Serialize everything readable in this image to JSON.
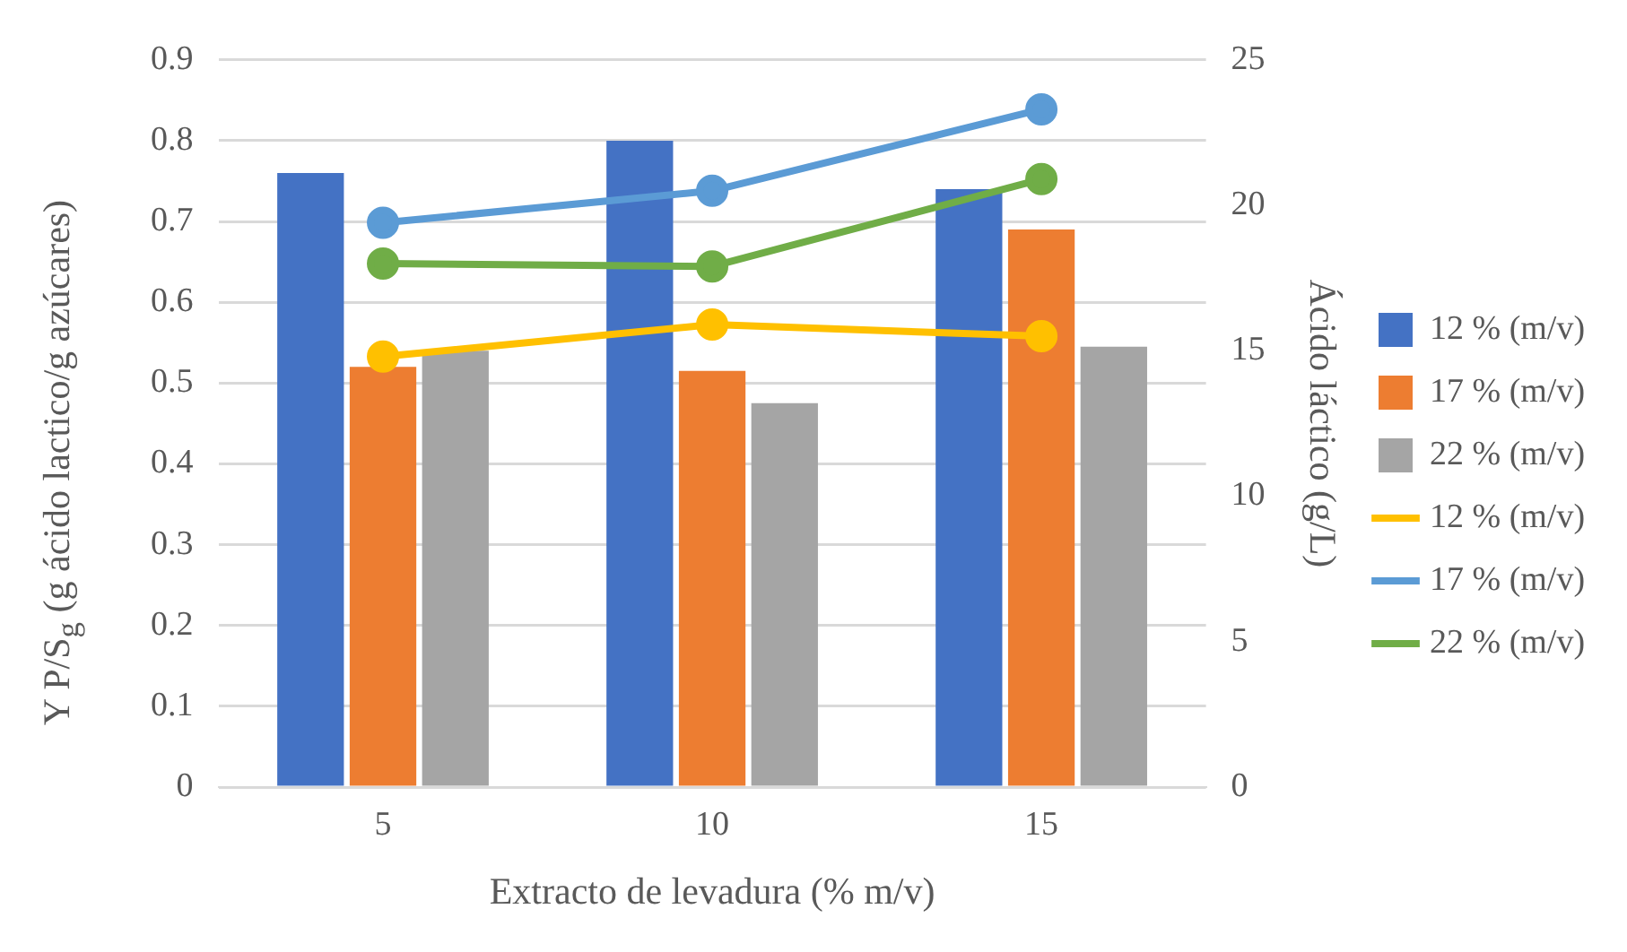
{
  "chart_data": {
    "type": "bar",
    "xlabel": "Extracto de levadura (% m/v)",
    "ylabel": "Y P/S$_{g}$ (g ácido lactico/g azúcares)",
    "y2label": "Ácido láctico (g/L)",
    "categories": [
      "5",
      "10",
      "15"
    ],
    "series": [
      {
        "name": "12 % (m/v)",
        "color": "#4472c4",
        "values": [
          0.76,
          0.8,
          0.74
        ]
      },
      {
        "name": "17 % (m/v)",
        "color": "#ed7d31",
        "values": [
          0.52,
          0.515,
          0.69
        ]
      },
      {
        "name": "22 % (m/v)",
        "color": "#a5a5a5",
        "values": [
          0.54,
          0.475,
          0.545
        ]
      },
      {
        "name": "12 % (m/v)",
        "type": "line",
        "axis": "y2",
        "color": "#ffc000",
        "values": [
          14.8,
          15.9,
          15.5
        ]
      },
      {
        "name": "17 % (m/v)",
        "type": "line",
        "axis": "y2",
        "color": "#5b9bd5",
        "values": [
          19.4,
          20.5,
          23.3
        ]
      },
      {
        "name": "22 % (m/v)",
        "type": "line",
        "axis": "y2",
        "color": "#70ad47",
        "values": [
          18.0,
          17.9,
          20.9
        ]
      }
    ],
    "ylim": [
      0,
      0.9
    ],
    "yticks": [
      0,
      0.1,
      0.2,
      0.3,
      0.4,
      0.5,
      0.6,
      0.7,
      0.8,
      0.9
    ],
    "y2lim": [
      0,
      25
    ],
    "y2ticks": [
      0,
      5,
      10,
      15,
      20,
      25
    ],
    "grid": "y",
    "legend": "right",
    "marker": "circle"
  }
}
